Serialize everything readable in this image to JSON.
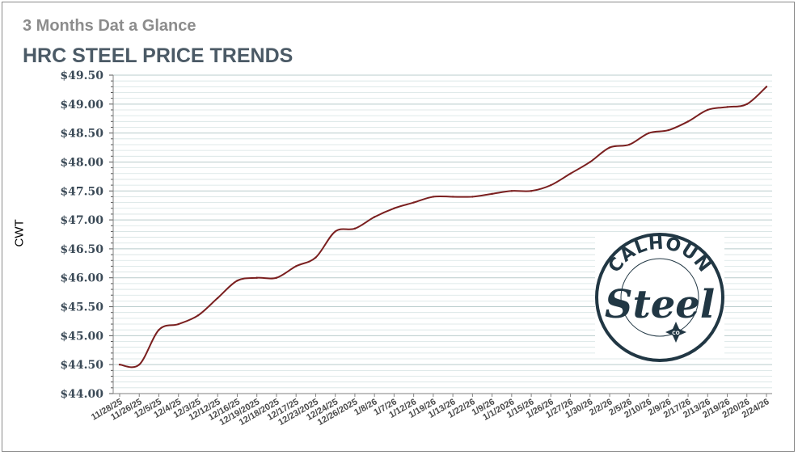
{
  "chart_data": {
    "type": "line",
    "subtitle": "3 Months Dat a Glance",
    "title": "HRC STEEL PRICE TRENDS",
    "xlabel": "",
    "ylabel": "CWT",
    "ylim": [
      44.0,
      49.5
    ],
    "yticks": [
      "$44.00",
      "$44.50",
      "$45.00",
      "$45.50",
      "$46.00",
      "$46.50",
      "$47.00",
      "$47.50",
      "$48.00",
      "$48.50",
      "$49.00",
      "$49.50"
    ],
    "grid": true,
    "legend": "none",
    "line_color": "#7a1f1f",
    "categories": [
      "11/28/25",
      "11/26/25",
      "12/5/25",
      "12/4/25",
      "12/3/25",
      "12/12/25",
      "12/16/25",
      "12/19/2025",
      "12/18/2025",
      "12/17/25",
      "12/23/2025",
      "12/24/25",
      "12/26/2025",
      "1/8/26",
      "1/7/26",
      "1/12/26",
      "1/19/26",
      "1/13/26",
      "1/22/26",
      "1/9/26",
      "1/1/2026",
      "1/15/26",
      "1/26/26",
      "1/27/26",
      "1/30/26",
      "2/2/26",
      "2/5/26",
      "2/10/26",
      "2/9/26",
      "2/17/26",
      "2/13/26",
      "2/19/26",
      "2/20/26",
      "2/24/26"
    ],
    "values": [
      44.5,
      44.5,
      45.1,
      45.2,
      45.35,
      45.65,
      45.95,
      46.0,
      46.0,
      46.2,
      46.35,
      46.8,
      46.85,
      47.05,
      47.2,
      47.3,
      47.4,
      47.4,
      47.4,
      47.45,
      47.5,
      47.5,
      47.6,
      47.8,
      48.0,
      48.25,
      48.3,
      48.5,
      48.55,
      48.7,
      48.9,
      48.95,
      49.0,
      49.3
    ]
  },
  "logo": {
    "text_top": "CALHOUN",
    "text_main": "Steel",
    "text_small": "CO",
    "color": "#213744"
  }
}
